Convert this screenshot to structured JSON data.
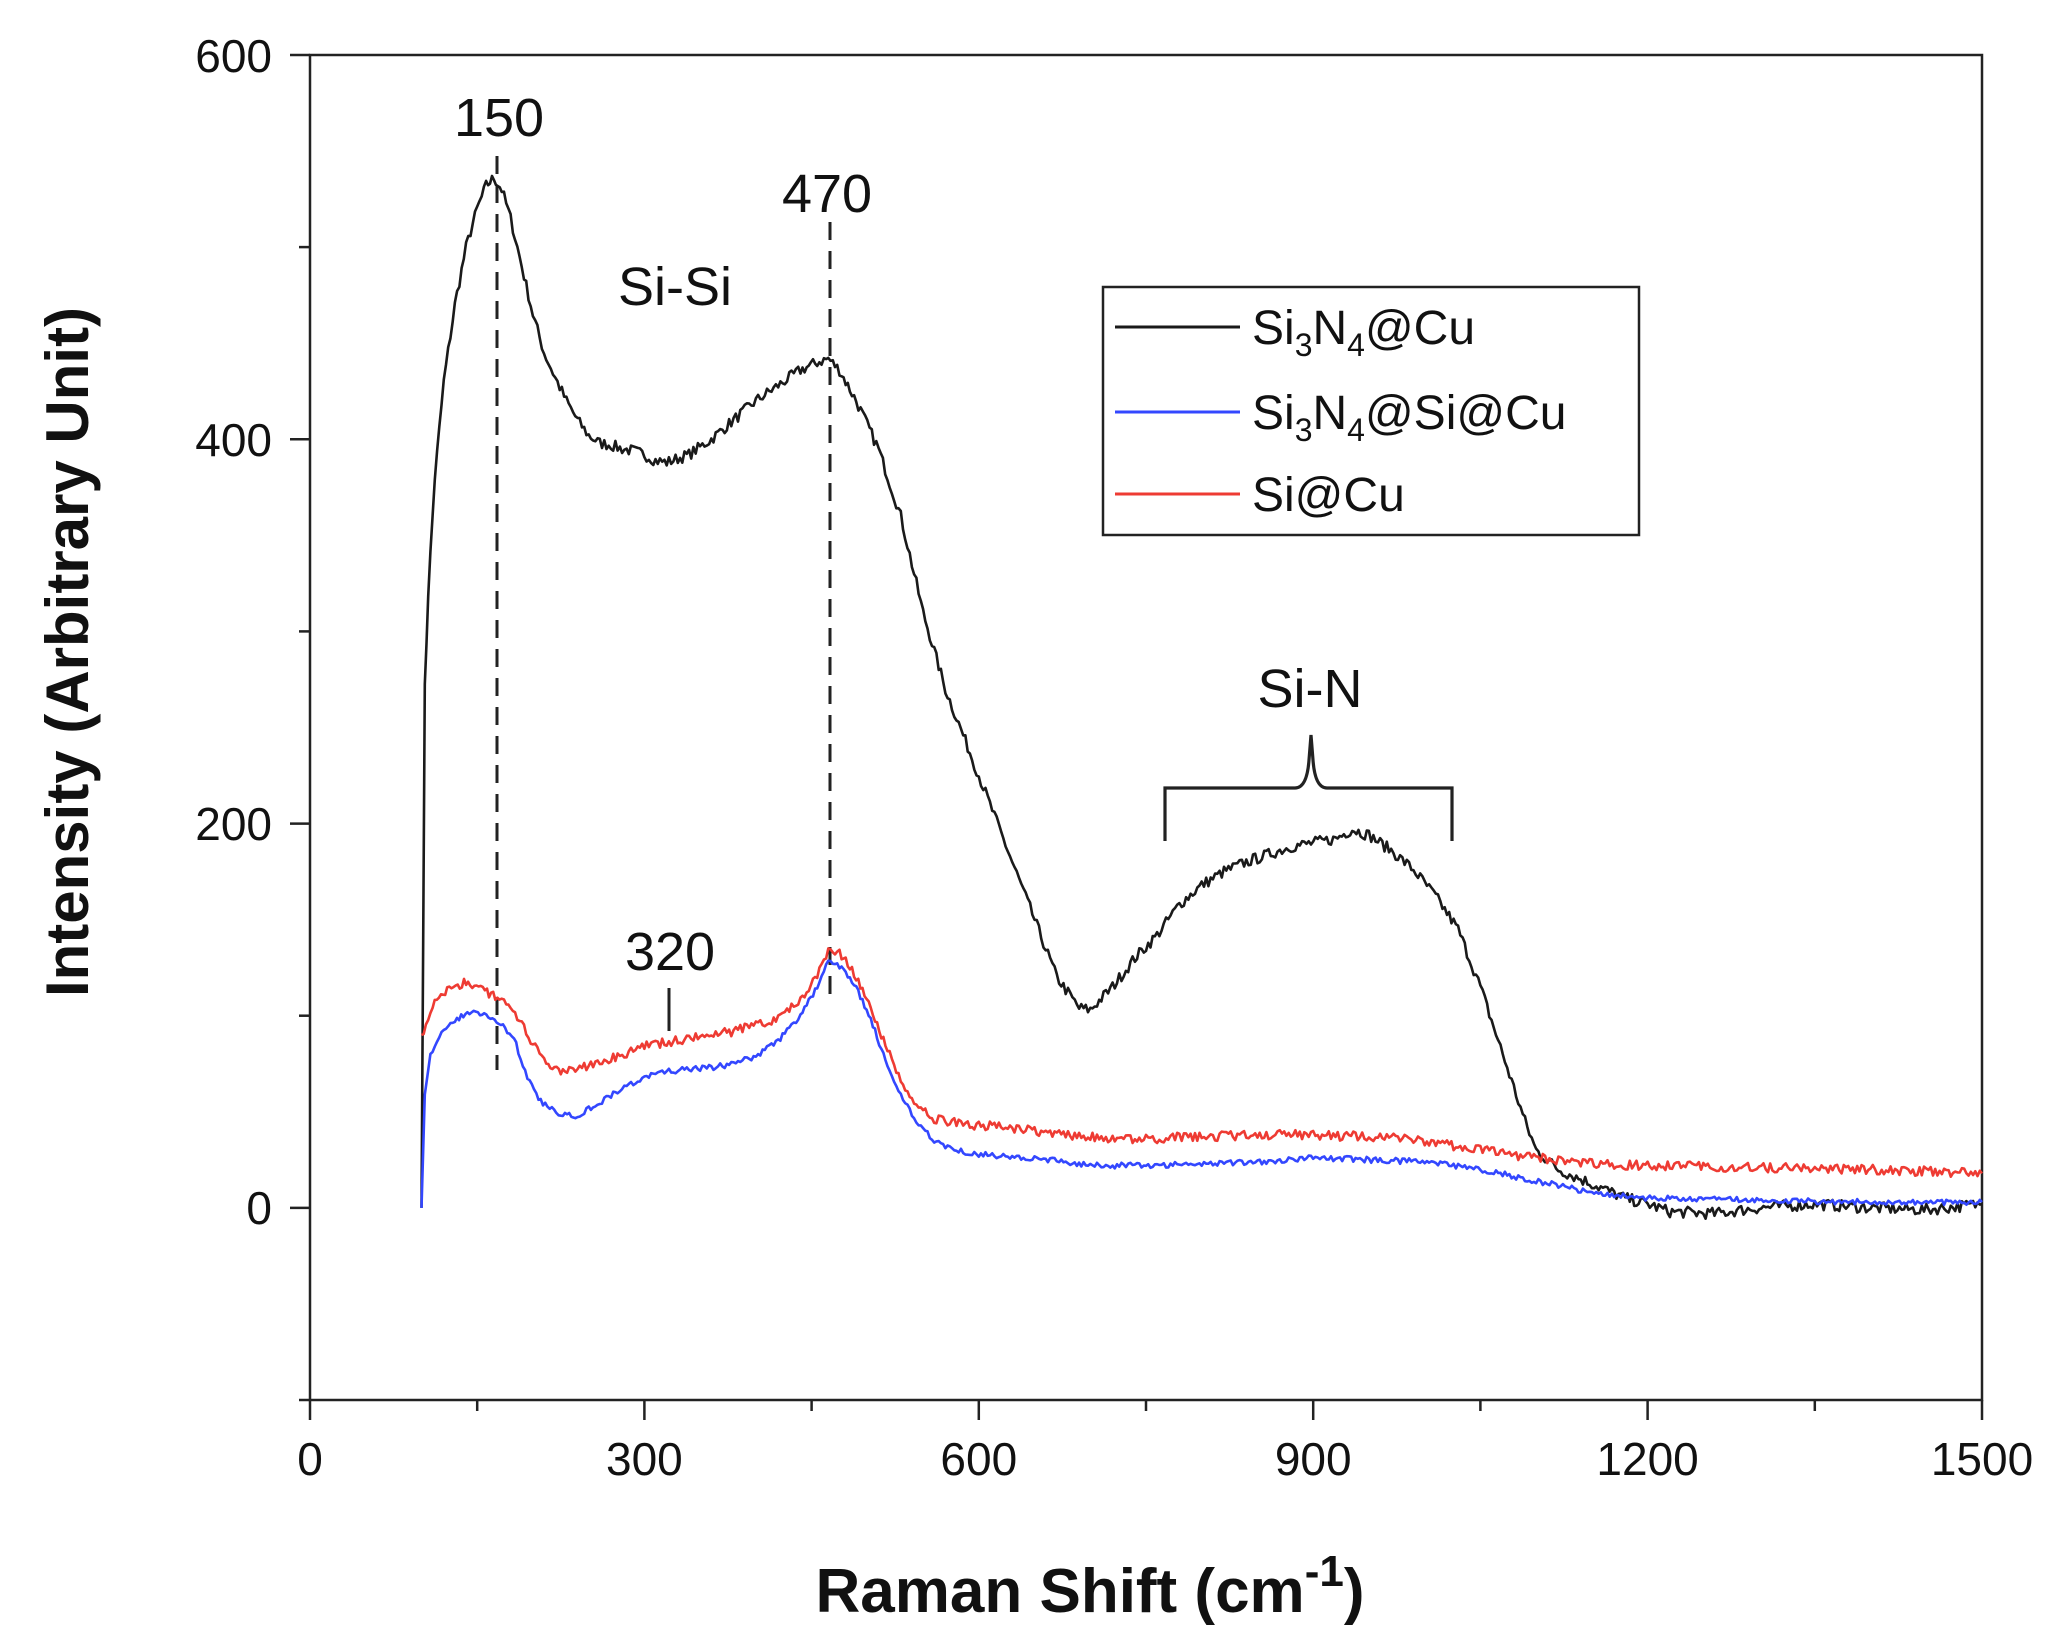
{
  "chart_data": {
    "type": "line",
    "xlabel": "Raman Shift (cm",
    "xlabel_sup": "-1",
    "xlabel_close": ")",
    "ylabel": "Intensity (Arbitrary Unit)",
    "xlim": [
      0,
      1500
    ],
    "ylim": [
      -100,
      600
    ],
    "xticks": [
      0,
      300,
      600,
      900,
      1200,
      1500
    ],
    "xtick_labels": [
      "0",
      "300",
      "600",
      "900",
      "1200",
      "1500"
    ],
    "yticks": [
      0,
      200,
      400,
      600
    ],
    "ytick_labels": [
      "0",
      "200",
      "400",
      "600"
    ],
    "legend_position": "upper-right",
    "series": [
      {
        "name": "Si3N4@Cu",
        "label_parts": [
          "Si",
          "3",
          "N",
          "4",
          "@Cu"
        ],
        "color": "#1a1a1a",
        "noise": 3,
        "points": [
          [
            100,
            0
          ],
          [
            103,
            270
          ],
          [
            106,
            320
          ],
          [
            112,
            380
          ],
          [
            120,
            430
          ],
          [
            130,
            470
          ],
          [
            140,
            500
          ],
          [
            150,
            520
          ],
          [
            158,
            532
          ],
          [
            165,
            536
          ],
          [
            172,
            530
          ],
          [
            180,
            515
          ],
          [
            190,
            490
          ],
          [
            200,
            465
          ],
          [
            210,
            445
          ],
          [
            220,
            432
          ],
          [
            230,
            420
          ],
          [
            240,
            410
          ],
          [
            250,
            402
          ],
          [
            260,
            398
          ],
          [
            270,
            397
          ],
          [
            280,
            395
          ],
          [
            290,
            394
          ],
          [
            300,
            392
          ],
          [
            310,
            389
          ],
          [
            320,
            388
          ],
          [
            330,
            390
          ],
          [
            340,
            392
          ],
          [
            350,
            396
          ],
          [
            360,
            400
          ],
          [
            380,
            410
          ],
          [
            400,
            420
          ],
          [
            420,
            428
          ],
          [
            440,
            436
          ],
          [
            455,
            440
          ],
          [
            465,
            442
          ],
          [
            475,
            436
          ],
          [
            490,
            420
          ],
          [
            510,
            395
          ],
          [
            530,
            360
          ],
          [
            550,
            310
          ],
          [
            570,
            270
          ],
          [
            590,
            240
          ],
          [
            610,
            210
          ],
          [
            630,
            180
          ],
          [
            650,
            150
          ],
          [
            670,
            120
          ],
          [
            690,
            104
          ],
          [
            700,
            103
          ],
          [
            720,
            115
          ],
          [
            740,
            130
          ],
          [
            760,
            142
          ],
          [
            780,
            158
          ],
          [
            800,
            168
          ],
          [
            820,
            175
          ],
          [
            840,
            180
          ],
          [
            860,
            184
          ],
          [
            880,
            188
          ],
          [
            900,
            190
          ],
          [
            920,
            192
          ],
          [
            935,
            197
          ],
          [
            950,
            194
          ],
          [
            970,
            186
          ],
          [
            990,
            176
          ],
          [
            1010,
            162
          ],
          [
            1030,
            145
          ],
          [
            1050,
            115
          ],
          [
            1070,
            80
          ],
          [
            1090,
            45
          ],
          [
            1100,
            30
          ],
          [
            1120,
            20
          ],
          [
            1140,
            15
          ],
          [
            1160,
            10
          ],
          [
            1180,
            5
          ],
          [
            1200,
            2
          ],
          [
            1220,
            -2
          ],
          [
            1260,
            -3
          ],
          [
            1300,
            0
          ],
          [
            1350,
            2
          ],
          [
            1400,
            0
          ],
          [
            1450,
            -1
          ],
          [
            1500,
            2
          ]
        ]
      },
      {
        "name": "Si3N4@Si@Cu",
        "label_parts": [
          "Si",
          "3",
          "N",
          "4",
          "@Si@Cu"
        ],
        "color": "#3347ff",
        "noise": 1.5,
        "points": [
          [
            100,
            0
          ],
          [
            103,
            60
          ],
          [
            108,
            80
          ],
          [
            118,
            90
          ],
          [
            130,
            98
          ],
          [
            145,
            102
          ],
          [
            160,
            100
          ],
          [
            175,
            94
          ],
          [
            185,
            85
          ],
          [
            195,
            68
          ],
          [
            205,
            56
          ],
          [
            215,
            52
          ],
          [
            225,
            49
          ],
          [
            240,
            48
          ],
          [
            260,
            55
          ],
          [
            280,
            62
          ],
          [
            300,
            68
          ],
          [
            320,
            71
          ],
          [
            340,
            72
          ],
          [
            360,
            73
          ],
          [
            380,
            75
          ],
          [
            400,
            79
          ],
          [
            420,
            87
          ],
          [
            440,
            100
          ],
          [
            455,
            115
          ],
          [
            465,
            128
          ],
          [
            475,
            126
          ],
          [
            490,
            115
          ],
          [
            505,
            95
          ],
          [
            520,
            70
          ],
          [
            540,
            48
          ],
          [
            560,
            35
          ],
          [
            580,
            30
          ],
          [
            600,
            28
          ],
          [
            640,
            26
          ],
          [
            680,
            24
          ],
          [
            700,
            22
          ],
          [
            750,
            22
          ],
          [
            800,
            23
          ],
          [
            850,
            24
          ],
          [
            900,
            26
          ],
          [
            950,
            25
          ],
          [
            1000,
            24
          ],
          [
            1050,
            20
          ],
          [
            1100,
            14
          ],
          [
            1150,
            8
          ],
          [
            1200,
            5
          ],
          [
            1300,
            4
          ],
          [
            1400,
            3
          ],
          [
            1500,
            3
          ]
        ]
      },
      {
        "name": "Si@Cu",
        "label_parts": [
          "Si@Cu"
        ],
        "color": "#ee3b33",
        "noise": 2.5,
        "points": [
          [
            100,
            90
          ],
          [
            110,
            105
          ],
          [
            125,
            115
          ],
          [
            140,
            117
          ],
          [
            155,
            113
          ],
          [
            170,
            110
          ],
          [
            180,
            105
          ],
          [
            190,
            95
          ],
          [
            200,
            85
          ],
          [
            210,
            76
          ],
          [
            225,
            70
          ],
          [
            240,
            72
          ],
          [
            260,
            76
          ],
          [
            280,
            80
          ],
          [
            300,
            84
          ],
          [
            320,
            86
          ],
          [
            340,
            88
          ],
          [
            360,
            90
          ],
          [
            380,
            92
          ],
          [
            400,
            95
          ],
          [
            420,
            99
          ],
          [
            440,
            108
          ],
          [
            455,
            122
          ],
          [
            465,
            133
          ],
          [
            475,
            133
          ],
          [
            490,
            120
          ],
          [
            505,
            100
          ],
          [
            520,
            80
          ],
          [
            540,
            55
          ],
          [
            560,
            46
          ],
          [
            580,
            44
          ],
          [
            600,
            43
          ],
          [
            650,
            40
          ],
          [
            700,
            37
          ],
          [
            750,
            36
          ],
          [
            800,
            37
          ],
          [
            850,
            38
          ],
          [
            900,
            38
          ],
          [
            950,
            37
          ],
          [
            1000,
            35
          ],
          [
            1050,
            30
          ],
          [
            1100,
            26
          ],
          [
            1150,
            23
          ],
          [
            1200,
            22
          ],
          [
            1300,
            21
          ],
          [
            1400,
            20
          ],
          [
            1500,
            18
          ]
        ]
      }
    ],
    "annotations": {
      "peak_150": "150",
      "peak_470": "470",
      "peak_320": "320",
      "si_si": "Si-Si",
      "si_n": "Si-N"
    }
  }
}
